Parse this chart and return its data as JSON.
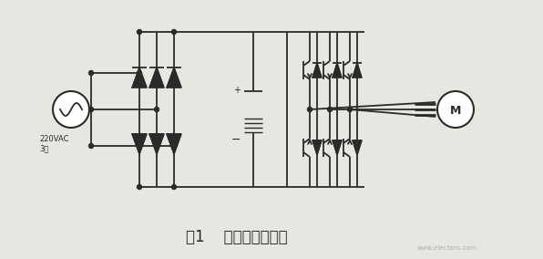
{
  "bg_color": "#e8e6e0",
  "line_color": "#2a2a2a",
  "title": "图1    通用变频器电路",
  "title_fontsize": 12,
  "label_source": "220VAC\n3相",
  "label_M": "M",
  "watermark": "www.elecfans.com"
}
